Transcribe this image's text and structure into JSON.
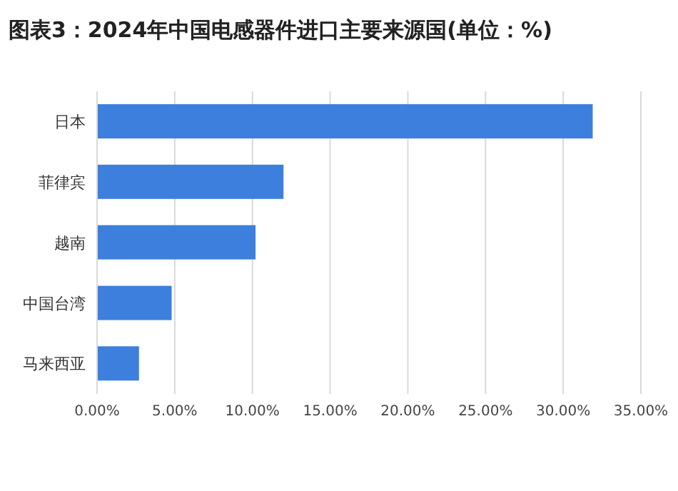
{
  "chart_data": {
    "type": "bar",
    "orientation": "horizontal",
    "title": "图表3：2024年中国电感器件进口主要来源国(单位：%)",
    "categories": [
      "日本",
      "菲律宾",
      "越南",
      "中国台湾",
      "马来西亚"
    ],
    "values": [
      31.9,
      12.0,
      10.2,
      4.8,
      2.7
    ],
    "color": "#3d7fdc",
    "xlim": [
      0,
      35
    ],
    "xticks": [
      {
        "value": 0,
        "label": "0.00%"
      },
      {
        "value": 5,
        "label": "5.00%"
      },
      {
        "value": 10,
        "label": "10.00%"
      },
      {
        "value": 15,
        "label": "15.00%"
      },
      {
        "value": 20,
        "label": "20.00%"
      },
      {
        "value": 25,
        "label": "25.00%"
      },
      {
        "value": 30,
        "label": "30.00%"
      },
      {
        "value": 35,
        "label": "35.00%"
      }
    ],
    "grid": "x"
  }
}
